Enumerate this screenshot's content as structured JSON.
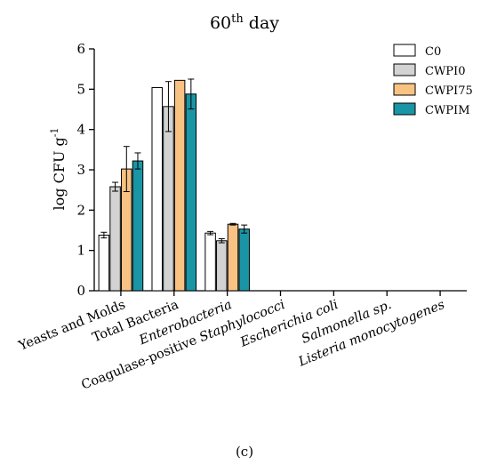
{
  "chart_data": {
    "type": "bar",
    "title": "60",
    "title_sup": "th",
    "title_rest": " day",
    "ylabel": "log CFU g",
    "ylabel_sup": "-1",
    "xlabel": "",
    "ylim": [
      0,
      6
    ],
    "yticks": [
      "0",
      "1",
      "2",
      "3",
      "4",
      "5",
      "6"
    ],
    "grid": false,
    "legend_position": "top-right",
    "categories": [
      {
        "label": "Yeasts and Molds",
        "italic": false
      },
      {
        "label": "Total Bacteria",
        "italic": false
      },
      {
        "label": "Enterobacteria",
        "italic": true
      },
      {
        "label": "Coagulase-positive Staphylococci",
        "italic": false,
        "italic_part": "Staphylococci"
      },
      {
        "label": "Escherichia coli",
        "italic": true
      },
      {
        "label": "Salmonella sp.",
        "italic": true
      },
      {
        "label": "Listeria monocytogenes",
        "italic": true
      }
    ],
    "series": [
      {
        "name": "C0",
        "color": "#ffffff",
        "values": [
          1.38,
          5.04,
          1.43,
          0,
          0,
          0,
          0
        ],
        "errors": [
          0.07,
          0,
          0.04,
          0,
          0,
          0,
          0
        ]
      },
      {
        "name": "CWPI0",
        "color": "#d3d3d3",
        "values": [
          2.58,
          4.57,
          1.24,
          0,
          0,
          0,
          0
        ],
        "errors": [
          0.11,
          0.62,
          0.05,
          0,
          0,
          0,
          0
        ]
      },
      {
        "name": "CWPI75",
        "color": "#f7c282",
        "values": [
          3.02,
          5.22,
          1.65,
          0,
          0,
          0,
          0
        ],
        "errors": [
          0.56,
          0,
          0.02,
          0,
          0,
          0,
          0
        ]
      },
      {
        "name": "CWPIM",
        "color": "#1a95a5",
        "values": [
          3.22,
          4.88,
          1.53,
          0,
          0,
          0,
          0
        ],
        "errors": [
          0.2,
          0.37,
          0.1,
          0,
          0,
          0,
          0
        ]
      }
    ]
  },
  "panel_label": "(c)"
}
